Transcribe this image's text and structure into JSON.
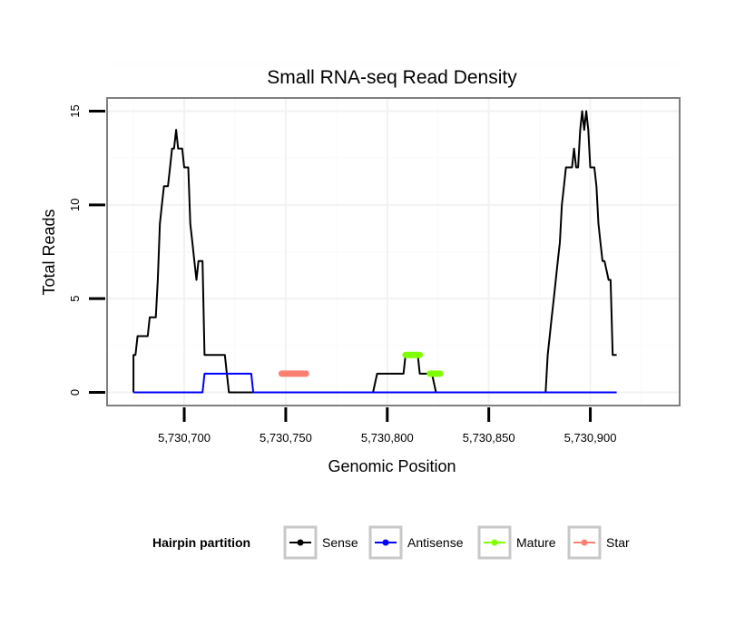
{
  "chart_data": {
    "type": "line",
    "title": "Small RNA-seq Read Density",
    "xlabel": "Genomic Position",
    "ylabel": "Total Reads",
    "xlim": [
      5730662,
      5730944
    ],
    "ylim": [
      -0.7,
      15.7
    ],
    "x_ticks": [
      5730700,
      5730750,
      5730800,
      5730850,
      5730900
    ],
    "x_tick_labels": [
      "5,730,700",
      "5,730,750",
      "5,730,800",
      "5,730,850",
      "5,730,900"
    ],
    "y_ticks": [
      0,
      5,
      10,
      15
    ],
    "y_tick_labels": [
      "0",
      "5",
      "10",
      "15"
    ],
    "grid": true,
    "legend": {
      "title": "Hairpin partition",
      "position": "bottom",
      "entries": [
        {
          "label": "Sense",
          "color": "#000000"
        },
        {
          "label": "Antisense",
          "color": "#0000ff"
        },
        {
          "label": "Mature",
          "color": "#7fff00"
        },
        {
          "label": "Star",
          "color": "#fa8072"
        }
      ]
    },
    "series": [
      {
        "name": "Sense",
        "color": "#000000",
        "points": [
          [
            5730675,
            0
          ],
          [
            5730675,
            2
          ],
          [
            5730676,
            2
          ],
          [
            5730677,
            3
          ],
          [
            5730679,
            3
          ],
          [
            5730680,
            3
          ],
          [
            5730681,
            3
          ],
          [
            5730682,
            3
          ],
          [
            5730683,
            4
          ],
          [
            5730685,
            4
          ],
          [
            5730686,
            4
          ],
          [
            5730687,
            6
          ],
          [
            5730688,
            9
          ],
          [
            5730689,
            10
          ],
          [
            5730690,
            11
          ],
          [
            5730692,
            11
          ],
          [
            5730693,
            12
          ],
          [
            5730694,
            13
          ],
          [
            5730695,
            13
          ],
          [
            5730696,
            14
          ],
          [
            5730697,
            13
          ],
          [
            5730698,
            13
          ],
          [
            5730699,
            13
          ],
          [
            5730700,
            12
          ],
          [
            5730701,
            12
          ],
          [
            5730702,
            12
          ],
          [
            5730703,
            9
          ],
          [
            5730704,
            8
          ],
          [
            5730705,
            7
          ],
          [
            5730706,
            6
          ],
          [
            5730707,
            7
          ],
          [
            5730708,
            7
          ],
          [
            5730709,
            7
          ],
          [
            5730710,
            2
          ],
          [
            5730712,
            2
          ],
          [
            5730714,
            2
          ],
          [
            5730716,
            2
          ],
          [
            5730718,
            2
          ],
          [
            5730720,
            2
          ],
          [
            5730721,
            1
          ],
          [
            5730722,
            0
          ],
          [
            5730730,
            0
          ],
          [
            5730735,
            0
          ],
          [
            5730740,
            0
          ],
          [
            5730745,
            0
          ],
          [
            5730750,
            0
          ],
          [
            5730755,
            0
          ],
          [
            5730760,
            0
          ],
          [
            5730765,
            0
          ],
          [
            5730770,
            0
          ],
          [
            5730775,
            0
          ],
          [
            5730780,
            0
          ],
          [
            5730785,
            0
          ],
          [
            5730790,
            0
          ],
          [
            5730793,
            0
          ],
          [
            5730795,
            1
          ],
          [
            5730800,
            1
          ],
          [
            5730808,
            1
          ],
          [
            5730809,
            2
          ],
          [
            5730811,
            2
          ],
          [
            5730815,
            2
          ],
          [
            5730816,
            1
          ],
          [
            5730818,
            1
          ],
          [
            5730820,
            1
          ],
          [
            5730822,
            1
          ],
          [
            5730824,
            0
          ],
          [
            5730830,
            0
          ],
          [
            5730840,
            0
          ],
          [
            5730850,
            0
          ],
          [
            5730860,
            0
          ],
          [
            5730870,
            0
          ],
          [
            5730878,
            0
          ],
          [
            5730879,
            2
          ],
          [
            5730880,
            3
          ],
          [
            5730881,
            4
          ],
          [
            5730882,
            5
          ],
          [
            5730883,
            6
          ],
          [
            5730884,
            7
          ],
          [
            5730885,
            8
          ],
          [
            5730886,
            10
          ],
          [
            5730887,
            11
          ],
          [
            5730888,
            12
          ],
          [
            5730891,
            12
          ],
          [
            5730892,
            13
          ],
          [
            5730893,
            12
          ],
          [
            5730894,
            12
          ],
          [
            5730895,
            14
          ],
          [
            5730896,
            15
          ],
          [
            5730897,
            14
          ],
          [
            5730898,
            15
          ],
          [
            5730899,
            14
          ],
          [
            5730900,
            12
          ],
          [
            5730902,
            12
          ],
          [
            5730903,
            11
          ],
          [
            5730904,
            9
          ],
          [
            5730905,
            8
          ],
          [
            5730906,
            7
          ],
          [
            5730907,
            7
          ],
          [
            5730909,
            6
          ],
          [
            5730910,
            6
          ],
          [
            5730911,
            2
          ],
          [
            5730913,
            2
          ]
        ]
      },
      {
        "name": "Antisense",
        "color": "#0000ff",
        "points": [
          [
            5730675,
            0
          ],
          [
            5730709,
            0
          ],
          [
            5730710,
            1
          ],
          [
            5730730,
            1
          ],
          [
            5730733,
            1
          ],
          [
            5730734,
            0
          ],
          [
            5730800,
            0
          ],
          [
            5730913,
            0
          ]
        ]
      },
      {
        "name": "Mature",
        "color": "#7fff00",
        "segments": [
          {
            "x": [
              5730809,
              5730816
            ],
            "y": 2
          },
          {
            "x": [
              5730821,
              5730826
            ],
            "y": 1
          }
        ]
      },
      {
        "name": "Star",
        "color": "#fa8072",
        "segments": [
          {
            "x": [
              5730748,
              5730760
            ],
            "y": 1
          }
        ]
      }
    ]
  }
}
